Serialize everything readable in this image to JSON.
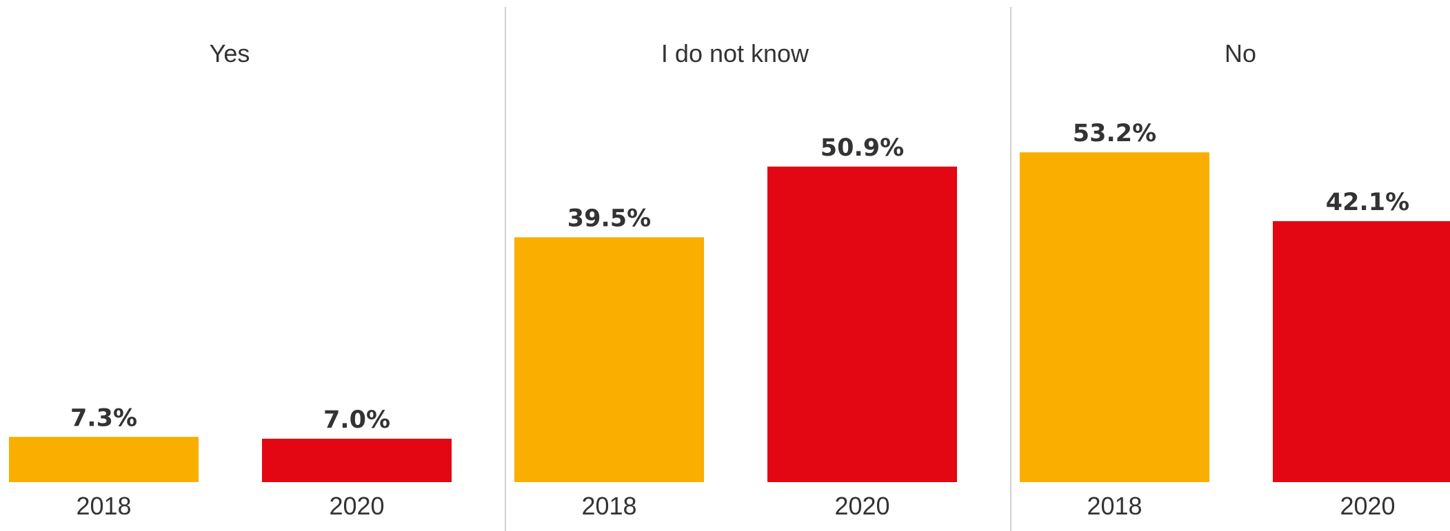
{
  "chart_data": {
    "type": "bar",
    "panels": [
      {
        "title": "Yes",
        "categories": [
          "2018",
          "2020"
        ],
        "values": [
          7.3,
          7.0
        ],
        "labels": [
          "7.3%",
          "7.0%"
        ]
      },
      {
        "title": "I do not know",
        "categories": [
          "2018",
          "2020"
        ],
        "values": [
          39.5,
          50.9
        ],
        "labels": [
          "39.5%",
          "50.9%"
        ]
      },
      {
        "title": "No",
        "categories": [
          "2018",
          "2020"
        ],
        "values": [
          53.2,
          42.1
        ],
        "labels": [
          "53.2%",
          "42.1%"
        ]
      }
    ],
    "series_colors": {
      "2018": "#F9AE00",
      "2020": "#E30613"
    },
    "ylim": [
      0,
      100
    ],
    "grid": false,
    "legend": "none"
  }
}
